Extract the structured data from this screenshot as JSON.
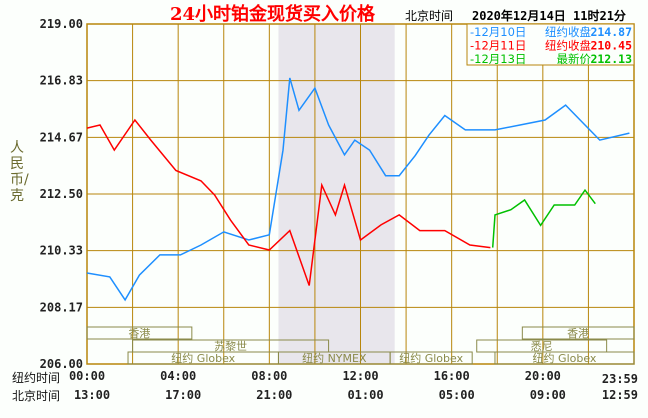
{
  "chart_data": {
    "type": "line",
    "title": "24小时铂金现货买入价格",
    "timestamp_label": "北京时间",
    "timestamp": "2020年12月14日 11时21分",
    "ylabel": "人民币/克",
    "ylim": [
      206.0,
      219.0
    ],
    "yticks": [
      "219.00",
      "216.83",
      "214.67",
      "212.50",
      "210.33",
      "208.17",
      "206.00"
    ],
    "xlim": [
      0,
      24
    ],
    "x_unit": "hours (New York time)",
    "xrow_labels": [
      "纽约时间",
      "北京时间"
    ],
    "xticks_ny": [
      "00:00",
      "04:00",
      "08:00",
      "12:00",
      "16:00",
      "20:00",
      "23:59"
    ],
    "xticks_bj": [
      "13:00",
      "17:00",
      "21:00",
      "01:00",
      "05:00",
      "09:00",
      "12:59"
    ],
    "grid": true,
    "legend_placement": "top-right",
    "shaded_session": [
      8.4,
      13.5
    ],
    "markets": [
      {
        "name": "香港",
        "row": 0,
        "start": 0,
        "end": 4.6
      },
      {
        "name": "香港",
        "row": 0,
        "start": 19.1,
        "end": 24
      },
      {
        "name": "苏黎世",
        "row": 1,
        "start": 2.0,
        "end": 10.6
      },
      {
        "name": "悉尼",
        "row": 1,
        "start": 17.1,
        "end": 22.8
      },
      {
        "name": "纽约 Globex",
        "row": 2,
        "start": 1.8,
        "end": 8.4
      },
      {
        "name": "纽约 NYMEX",
        "row": 2,
        "start": 8.4,
        "end": 13.3
      },
      {
        "name": "纽约 Globex",
        "row": 2,
        "start": 13.3,
        "end": 16.9
      },
      {
        "name": "纽约 Globex",
        "row": 2,
        "start": 17.9,
        "end": 24
      }
    ],
    "series": [
      {
        "name": "12月10日",
        "label": "纽约收盘",
        "value": "214.87",
        "color": "#1e8fff",
        "x": [
          0,
          1,
          1.67,
          2.3,
          3.2,
          4.1,
          5,
          6,
          7.1,
          8,
          8.6,
          8.9,
          9.3,
          10,
          10.6,
          11.3,
          11.75,
          12.4,
          13.1,
          13.7,
          14.4,
          15,
          15.7,
          16.6,
          17.9,
          19,
          20.1,
          21,
          21.85,
          22.5,
          23.8
        ],
        "y": [
          209.48,
          209.33,
          208.45,
          209.4,
          210.17,
          210.17,
          210.55,
          211.05,
          210.74,
          210.94,
          214.18,
          216.94,
          215.7,
          216.55,
          215.14,
          214.0,
          214.56,
          214.18,
          213.2,
          213.2,
          213.97,
          214.75,
          215.5,
          214.95,
          214.95,
          215.14,
          215.33,
          215.9,
          215.14,
          214.56,
          214.83
        ]
      },
      {
        "name": "12月11日",
        "label": "纽约收盘",
        "value": "210.45",
        "color": "#ff0000",
        "x": [
          0,
          0.57,
          1.2,
          2.1,
          2.8,
          3.9,
          5,
          5.6,
          6.3,
          7.1,
          8,
          8.9,
          9.75,
          10.3,
          10.9,
          11.3,
          12,
          12.9,
          13.7,
          14.6,
          15.7,
          16.8,
          17.7
        ],
        "y": [
          215.02,
          215.14,
          214.18,
          215.33,
          214.56,
          213.4,
          213.0,
          212.46,
          211.5,
          210.55,
          210.36,
          211.1,
          209.0,
          212.84,
          211.7,
          212.84,
          210.74,
          211.32,
          211.7,
          211.1,
          211.1,
          210.55,
          210.45
        ]
      },
      {
        "name": "12月13日",
        "label": "最新价",
        "value": "212.13",
        "color": "#00c000",
        "x": [
          17.8,
          17.9,
          18.6,
          19.2,
          19.9,
          20.5,
          21.4,
          21.85,
          22.3
        ],
        "y": [
          210.45,
          211.7,
          211.9,
          212.27,
          211.3,
          212.08,
          212.08,
          212.65,
          212.13
        ]
      }
    ]
  }
}
